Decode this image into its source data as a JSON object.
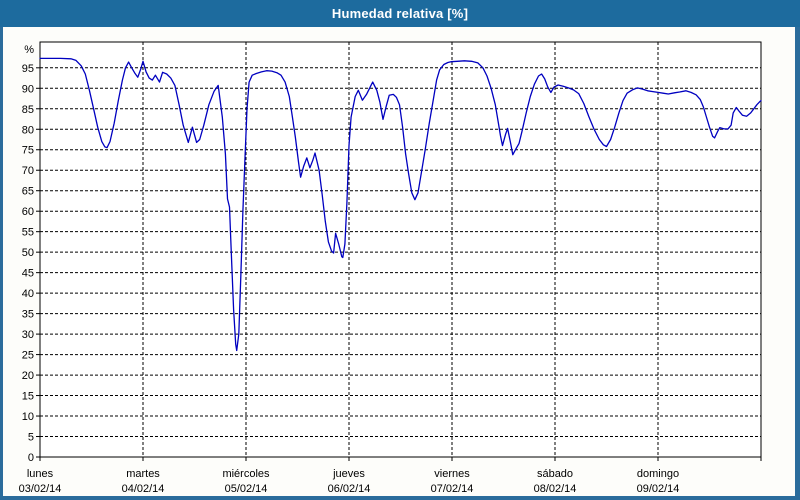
{
  "window": {
    "title": "Humedad relativa [%]"
  },
  "colors": {
    "titlebar_bg": "#1d6b9e",
    "titlebar_text": "#ffffff",
    "frame": "#2b6c9c",
    "panel_bg": "#fdfdfa",
    "plot_bg": "#ffffff",
    "line": "#0000c0",
    "grid": "#000000",
    "text": "#000000"
  },
  "chart_data": {
    "type": "line",
    "title": "Humedad relativa [%]",
    "ylabel": "%",
    "xlabel": "",
    "ylim": [
      0,
      100
    ],
    "ytick_step": 5,
    "yticks": [
      0,
      5,
      10,
      15,
      20,
      25,
      30,
      35,
      40,
      45,
      50,
      55,
      60,
      65,
      70,
      75,
      80,
      85,
      90,
      95
    ],
    "grid": "dashed-black",
    "legend": "none",
    "x_unit": "days since lunes 03/02/14 00:00",
    "x_range": [
      0,
      7
    ],
    "days": [
      {
        "name": "lunes",
        "date": "03/02/14"
      },
      {
        "name": "martes",
        "date": "04/02/14"
      },
      {
        "name": "miércoles",
        "date": "05/02/14"
      },
      {
        "name": "jueves",
        "date": "06/02/14"
      },
      {
        "name": "viernes",
        "date": "07/02/14"
      },
      {
        "name": "sábado",
        "date": "08/02/14"
      },
      {
        "name": "domingo",
        "date": "09/02/14"
      }
    ],
    "series": [
      {
        "name": "Humedad relativa",
        "color": "#0000c0",
        "points": [
          [
            0,
            97.3
          ],
          [
            0.1,
            97.3
          ],
          [
            0.2,
            97.3
          ],
          [
            0.3,
            97.2
          ],
          [
            0.35,
            96.8
          ],
          [
            0.4,
            95.5
          ],
          [
            0.44,
            93.5
          ],
          [
            0.48,
            89.5
          ],
          [
            0.52,
            85
          ],
          [
            0.56,
            80.5
          ],
          [
            0.6,
            77
          ],
          [
            0.63,
            75.7
          ],
          [
            0.65,
            75.5
          ],
          [
            0.68,
            77
          ],
          [
            0.72,
            81.5
          ],
          [
            0.76,
            87
          ],
          [
            0.8,
            92
          ],
          [
            0.83,
            95
          ],
          [
            0.86,
            96.4
          ],
          [
            0.89,
            95
          ],
          [
            0.92,
            93.7
          ],
          [
            0.95,
            92.7
          ],
          [
            0.98,
            94.8
          ],
          [
            1,
            96.6
          ],
          [
            1.03,
            94
          ],
          [
            1.06,
            92.5
          ],
          [
            1.09,
            92
          ],
          [
            1.12,
            93.2
          ],
          [
            1.16,
            91.5
          ],
          [
            1.19,
            93.9
          ],
          [
            1.23,
            93.5
          ],
          [
            1.27,
            92.5
          ],
          [
            1.31,
            90.7
          ],
          [
            1.35,
            86
          ],
          [
            1.39,
            81
          ],
          [
            1.44,
            76.8
          ],
          [
            1.48,
            80.5
          ],
          [
            1.52,
            76.8
          ],
          [
            1.55,
            77.5
          ],
          [
            1.59,
            81
          ],
          [
            1.64,
            86
          ],
          [
            1.69,
            89.3
          ],
          [
            1.73,
            90.7
          ],
          [
            1.77,
            83
          ],
          [
            1.8,
            74
          ],
          [
            1.82,
            63
          ],
          [
            1.84,
            61
          ],
          [
            1.86,
            48
          ],
          [
            1.88,
            36
          ],
          [
            1.9,
            27.5
          ],
          [
            1.91,
            26
          ],
          [
            1.93,
            30
          ],
          [
            1.95,
            44
          ],
          [
            1.97,
            60
          ],
          [
            1.99,
            73
          ],
          [
            2.01,
            85
          ],
          [
            2.03,
            91.5
          ],
          [
            2.06,
            93.2
          ],
          [
            2.1,
            93.6
          ],
          [
            2.15,
            94
          ],
          [
            2.2,
            94.3
          ],
          [
            2.25,
            94.2
          ],
          [
            2.3,
            93.8
          ],
          [
            2.34,
            93.2
          ],
          [
            2.38,
            91.5
          ],
          [
            2.42,
            88
          ],
          [
            2.45,
            83
          ],
          [
            2.48,
            78
          ],
          [
            2.51,
            72
          ],
          [
            2.53,
            68.3
          ],
          [
            2.56,
            71
          ],
          [
            2.59,
            73
          ],
          [
            2.62,
            70.6
          ],
          [
            2.65,
            72.5
          ],
          [
            2.67,
            74.2
          ],
          [
            2.71,
            70
          ],
          [
            2.74,
            64
          ],
          [
            2.77,
            57.5
          ],
          [
            2.8,
            52.5
          ],
          [
            2.83,
            50.3
          ],
          [
            2.85,
            49.8
          ],
          [
            2.87,
            54.6
          ],
          [
            2.9,
            52
          ],
          [
            2.93,
            48.9
          ],
          [
            2.94,
            48.7
          ],
          [
            2.96,
            52
          ],
          [
            2.98,
            62
          ],
          [
            3,
            76
          ],
          [
            3.02,
            83
          ],
          [
            3.06,
            88
          ],
          [
            3.09,
            89.5
          ],
          [
            3.13,
            87.1
          ],
          [
            3.17,
            88.5
          ],
          [
            3.21,
            90.5
          ],
          [
            3.23,
            91.5
          ],
          [
            3.27,
            89.5
          ],
          [
            3.3,
            86.6
          ],
          [
            3.33,
            82.4
          ],
          [
            3.36,
            85.5
          ],
          [
            3.39,
            88.3
          ],
          [
            3.43,
            88.5
          ],
          [
            3.46,
            87.8
          ],
          [
            3.49,
            86
          ],
          [
            3.52,
            80.5
          ],
          [
            3.55,
            74
          ],
          [
            3.58,
            69
          ],
          [
            3.61,
            64.5
          ],
          [
            3.64,
            62.8
          ],
          [
            3.67,
            64.5
          ],
          [
            3.7,
            69
          ],
          [
            3.74,
            75
          ],
          [
            3.78,
            81.5
          ],
          [
            3.82,
            87.5
          ],
          [
            3.85,
            92
          ],
          [
            3.88,
            94.5
          ],
          [
            3.92,
            95.8
          ],
          [
            3.96,
            96.3
          ],
          [
            3.99,
            96.5
          ],
          [
            4.05,
            96.6
          ],
          [
            4.12,
            96.7
          ],
          [
            4.19,
            96.6
          ],
          [
            4.25,
            96.2
          ],
          [
            4.3,
            95
          ],
          [
            4.34,
            93
          ],
          [
            4.38,
            90
          ],
          [
            4.42,
            86
          ],
          [
            4.45,
            81.5
          ],
          [
            4.47,
            78.5
          ],
          [
            4.49,
            76
          ],
          [
            4.52,
            78.8
          ],
          [
            4.54,
            80.2
          ],
          [
            4.57,
            76.5
          ],
          [
            4.59,
            73.8
          ],
          [
            4.62,
            75.2
          ],
          [
            4.65,
            76.5
          ],
          [
            4.68,
            79.5
          ],
          [
            4.72,
            84
          ],
          [
            4.76,
            88
          ],
          [
            4.8,
            91
          ],
          [
            4.84,
            93
          ],
          [
            4.87,
            93.5
          ],
          [
            4.9,
            92.3
          ],
          [
            4.93,
            90.3
          ],
          [
            4.96,
            89
          ],
          [
            4.99,
            90.3
          ],
          [
            5.03,
            90.8
          ],
          [
            5.08,
            90.5
          ],
          [
            5.13,
            90.1
          ],
          [
            5.18,
            89.6
          ],
          [
            5.23,
            88.7
          ],
          [
            5.28,
            86.3
          ],
          [
            5.33,
            83
          ],
          [
            5.38,
            80
          ],
          [
            5.43,
            77.5
          ],
          [
            5.47,
            76.2
          ],
          [
            5.5,
            75.8
          ],
          [
            5.54,
            77.5
          ],
          [
            5.58,
            80.5
          ],
          [
            5.62,
            84
          ],
          [
            5.66,
            87
          ],
          [
            5.7,
            88.8
          ],
          [
            5.75,
            89.6
          ],
          [
            5.8,
            90.1
          ],
          [
            5.85,
            89.8
          ],
          [
            5.9,
            89.4
          ],
          [
            5.95,
            89.2
          ],
          [
            6,
            89
          ],
          [
            6.05,
            88.8
          ],
          [
            6.1,
            88.6
          ],
          [
            6.16,
            88.9
          ],
          [
            6.21,
            89.1
          ],
          [
            6.27,
            89.4
          ],
          [
            6.32,
            89
          ],
          [
            6.37,
            88.4
          ],
          [
            6.41,
            87.3
          ],
          [
            6.44,
            85.5
          ],
          [
            6.47,
            83
          ],
          [
            6.5,
            80.5
          ],
          [
            6.53,
            78.3
          ],
          [
            6.55,
            77.9
          ],
          [
            6.58,
            79.5
          ],
          [
            6.6,
            80.4
          ],
          [
            6.64,
            80.1
          ],
          [
            6.68,
            80.1
          ],
          [
            6.71,
            81
          ],
          [
            6.73,
            84
          ],
          [
            6.76,
            85.3
          ],
          [
            6.79,
            84.3
          ],
          [
            6.82,
            83.4
          ],
          [
            6.86,
            83.2
          ],
          [
            6.9,
            84
          ],
          [
            6.93,
            85
          ],
          [
            6.96,
            86
          ],
          [
            6.99,
            86.8
          ],
          [
            7,
            87
          ]
        ]
      }
    ]
  }
}
